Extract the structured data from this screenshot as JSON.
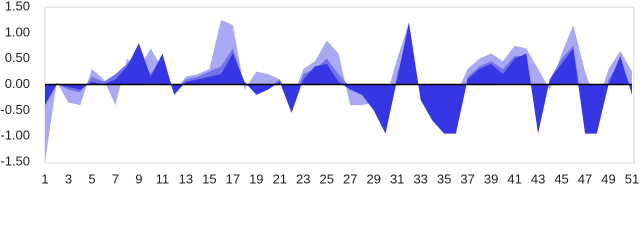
{
  "chart_data": {
    "type": "area",
    "categories": [
      1,
      null,
      3,
      null,
      5,
      null,
      7,
      null,
      9,
      null,
      11,
      null,
      13,
      null,
      15,
      null,
      17,
      null,
      19,
      null,
      21,
      null,
      23,
      null,
      25,
      null,
      27,
      null,
      29,
      null,
      31,
      null,
      33,
      null,
      35,
      null,
      37,
      null,
      39,
      null,
      41,
      null,
      43,
      null,
      45,
      null,
      47,
      null,
      49,
      null,
      51
    ],
    "series": [
      {
        "color": "#a9a9f5",
        "values": [
          -1.5,
          0.05,
          -0.35,
          -0.4,
          0.3,
          0.1,
          -0.4,
          0.5,
          0.3,
          0.7,
          0.3,
          -0.15,
          0.15,
          0.2,
          0.3,
          1.25,
          1.15,
          -0.1,
          0.25,
          0.2,
          0.1,
          -0.3,
          0.3,
          0.45,
          0.85,
          0.6,
          -0.4,
          -0.4,
          -0.35,
          -0.3,
          0.5,
          1.2,
          -0.3,
          -0.3,
          -0.4,
          -0.2,
          0.3,
          0.5,
          0.6,
          0.45,
          0.75,
          0.7,
          0.3,
          -0.1,
          0.6,
          1.15,
          0.25,
          -0.4,
          0.3,
          0.65,
          0.25
        ]
      },
      {
        "color": "#7272ec",
        "values": [
          -0.3,
          0.02,
          -0.1,
          -0.15,
          0.15,
          0.05,
          0.2,
          0.4,
          0.6,
          0.2,
          0.5,
          -0.15,
          0.1,
          0.15,
          0.25,
          0.35,
          0.7,
          0.0,
          -0.1,
          -0.05,
          0.1,
          -0.4,
          0.2,
          0.3,
          0.5,
          0.2,
          -0.05,
          -0.15,
          -0.4,
          -0.8,
          0.2,
          1.0,
          -0.25,
          -0.6,
          -0.85,
          -0.85,
          0.15,
          0.35,
          0.45,
          0.3,
          0.55,
          0.55,
          -0.8,
          0.1,
          0.5,
          0.75,
          -0.8,
          -0.8,
          0.1,
          0.45,
          -0.1
        ]
      },
      {
        "color": "#3636e4",
        "values": [
          -0.4,
          0.0,
          -0.05,
          -0.1,
          0.05,
          0.0,
          0.1,
          0.35,
          0.8,
          0.15,
          0.6,
          -0.2,
          0.05,
          0.1,
          0.15,
          0.2,
          0.6,
          0.05,
          -0.2,
          -0.1,
          0.05,
          -0.55,
          0.1,
          0.35,
          0.4,
          0.05,
          -0.1,
          -0.2,
          -0.5,
          -0.95,
          0.1,
          1.2,
          -0.3,
          -0.7,
          -0.95,
          -0.95,
          0.1,
          0.3,
          0.4,
          0.2,
          0.5,
          0.6,
          -0.95,
          0.1,
          0.4,
          0.7,
          -0.95,
          -0.95,
          0.0,
          0.55,
          -0.2
        ]
      }
    ],
    "ylim": [
      -1.5,
      1.5
    ],
    "yticks": [
      {
        "value": -1.5,
        "label": "-1.50"
      },
      {
        "value": -1,
        "label": "-1.00"
      },
      {
        "value": -0.5,
        "label": "-0.50"
      },
      {
        "value": 0,
        "label": "0.00"
      },
      {
        "value": 0.5,
        "label": "0.50"
      },
      {
        "value": 1,
        "label": "1.00"
      },
      {
        "value": 1.5,
        "label": "1.50"
      }
    ]
  }
}
